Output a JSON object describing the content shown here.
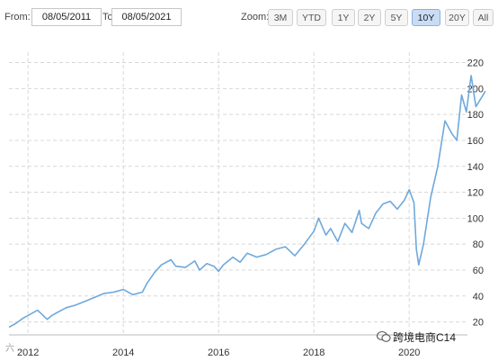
{
  "range_selector": {
    "from_label": "From:",
    "from_value": "08/05/2011",
    "to_label": "To:",
    "to_value": "08/05/2021",
    "zoom_label": "Zoom:",
    "buttons": [
      "3M",
      "YTD",
      "1Y",
      "2Y",
      "5Y",
      "10Y",
      "20Y",
      "All"
    ],
    "active_button": "10Y"
  },
  "colors": {
    "line": "#6fa8dc",
    "grid": "#d8d8d8",
    "active_button": "#c9dcf5"
  },
  "watermark": {
    "right_text": "跨境电商C14",
    "left_text": "六 ..."
  },
  "chart_data": {
    "type": "line",
    "x_range": [
      2011.6,
      2021.6
    ],
    "ylim": [
      10,
      228
    ],
    "y_ticks": [
      20,
      40,
      60,
      80,
      100,
      120,
      140,
      160,
      180,
      200,
      220
    ],
    "x_ticks": [
      2012,
      2014,
      2016,
      2018,
      2020
    ],
    "grid": true,
    "series": [
      {
        "x": [
          2011.6,
          2011.75,
          2011.9,
          2012.0,
          2012.2,
          2012.4,
          2012.5,
          2012.6,
          2012.8,
          2013.0,
          2013.2,
          2013.4,
          2013.6,
          2013.8,
          2014.0,
          2014.2,
          2014.4,
          2014.5,
          2014.65,
          2014.8,
          2015.0,
          2015.1,
          2015.3,
          2015.5,
          2015.6,
          2015.75,
          2015.9,
          2016.0,
          2016.1,
          2016.3,
          2016.45,
          2016.6,
          2016.8,
          2017.0,
          2017.2,
          2017.4,
          2017.6,
          2017.8,
          2018.0,
          2018.1,
          2018.25,
          2018.35,
          2018.5,
          2018.65,
          2018.8,
          2018.95,
          2019.0,
          2019.15,
          2019.3,
          2019.45,
          2019.6,
          2019.75,
          2019.9,
          2020.0,
          2020.1,
          2020.15,
          2020.2,
          2020.3,
          2020.45,
          2020.6,
          2020.75,
          2020.9,
          2021.0,
          2021.1,
          2021.2,
          2021.3,
          2021.4,
          2021.5,
          2021.6
        ],
        "y": [
          16,
          19,
          23,
          25,
          29,
          22,
          25,
          27,
          31,
          33,
          36,
          39,
          42,
          43,
          45,
          41,
          43,
          50,
          58,
          64,
          68,
          63,
          62,
          67,
          60,
          65,
          63,
          59,
          64,
          70,
          66,
          73,
          70,
          72,
          76,
          78,
          71,
          80,
          90,
          100,
          87,
          92,
          82,
          96,
          89,
          106,
          96,
          92,
          104,
          111,
          113,
          107,
          114,
          122,
          112,
          76,
          64,
          80,
          116,
          140,
          175,
          165,
          160,
          195,
          182,
          210,
          186,
          192,
          198
        ]
      }
    ]
  }
}
